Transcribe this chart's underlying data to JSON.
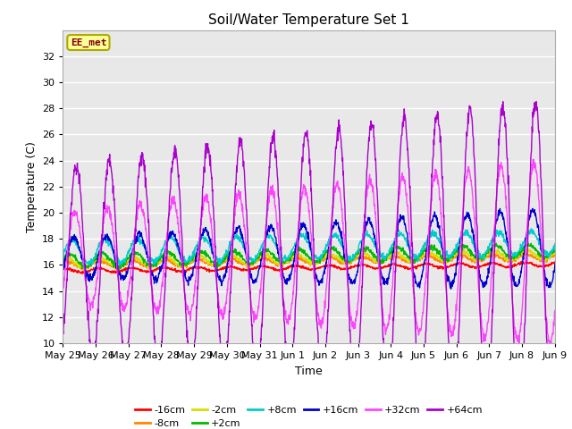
{
  "title": "Soil/Water Temperature Set 1",
  "xlabel": "Time",
  "ylabel": "Temperature (C)",
  "ylim": [
    10,
    34
  ],
  "yticks": [
    10,
    12,
    14,
    16,
    18,
    20,
    22,
    24,
    26,
    28,
    30,
    32
  ],
  "annotation_text": "EE_met",
  "annotation_color": "#800000",
  "annotation_bg": "#ffff99",
  "annotation_border": "#aaaa00",
  "fig_bg": "#ffffff",
  "plot_bg": "#e8e8e8",
  "grid_color": "#ffffff",
  "series_colors": {
    "-16cm": "#ff0000",
    "-8cm": "#ff8800",
    "-2cm": "#dddd00",
    "+2cm": "#00bb00",
    "+8cm": "#00cccc",
    "+16cm": "#0000cc",
    "+32cm": "#ff44ff",
    "+64cm": "#aa00cc"
  },
  "tick_positions": [
    0,
    24,
    48,
    72,
    96,
    120,
    144,
    168,
    192,
    216,
    240,
    264,
    288,
    312,
    336,
    360
  ],
  "tick_labels": [
    "May 25",
    "May 26",
    "May 27",
    "May 28",
    "May 29",
    "May 30",
    "May 31",
    "Jun 1",
    "Jun 2",
    "Jun 3",
    "Jun 4",
    "Jun 5",
    "Jun 6",
    "Jun 7",
    "Jun 8",
    "Jun 9"
  ]
}
